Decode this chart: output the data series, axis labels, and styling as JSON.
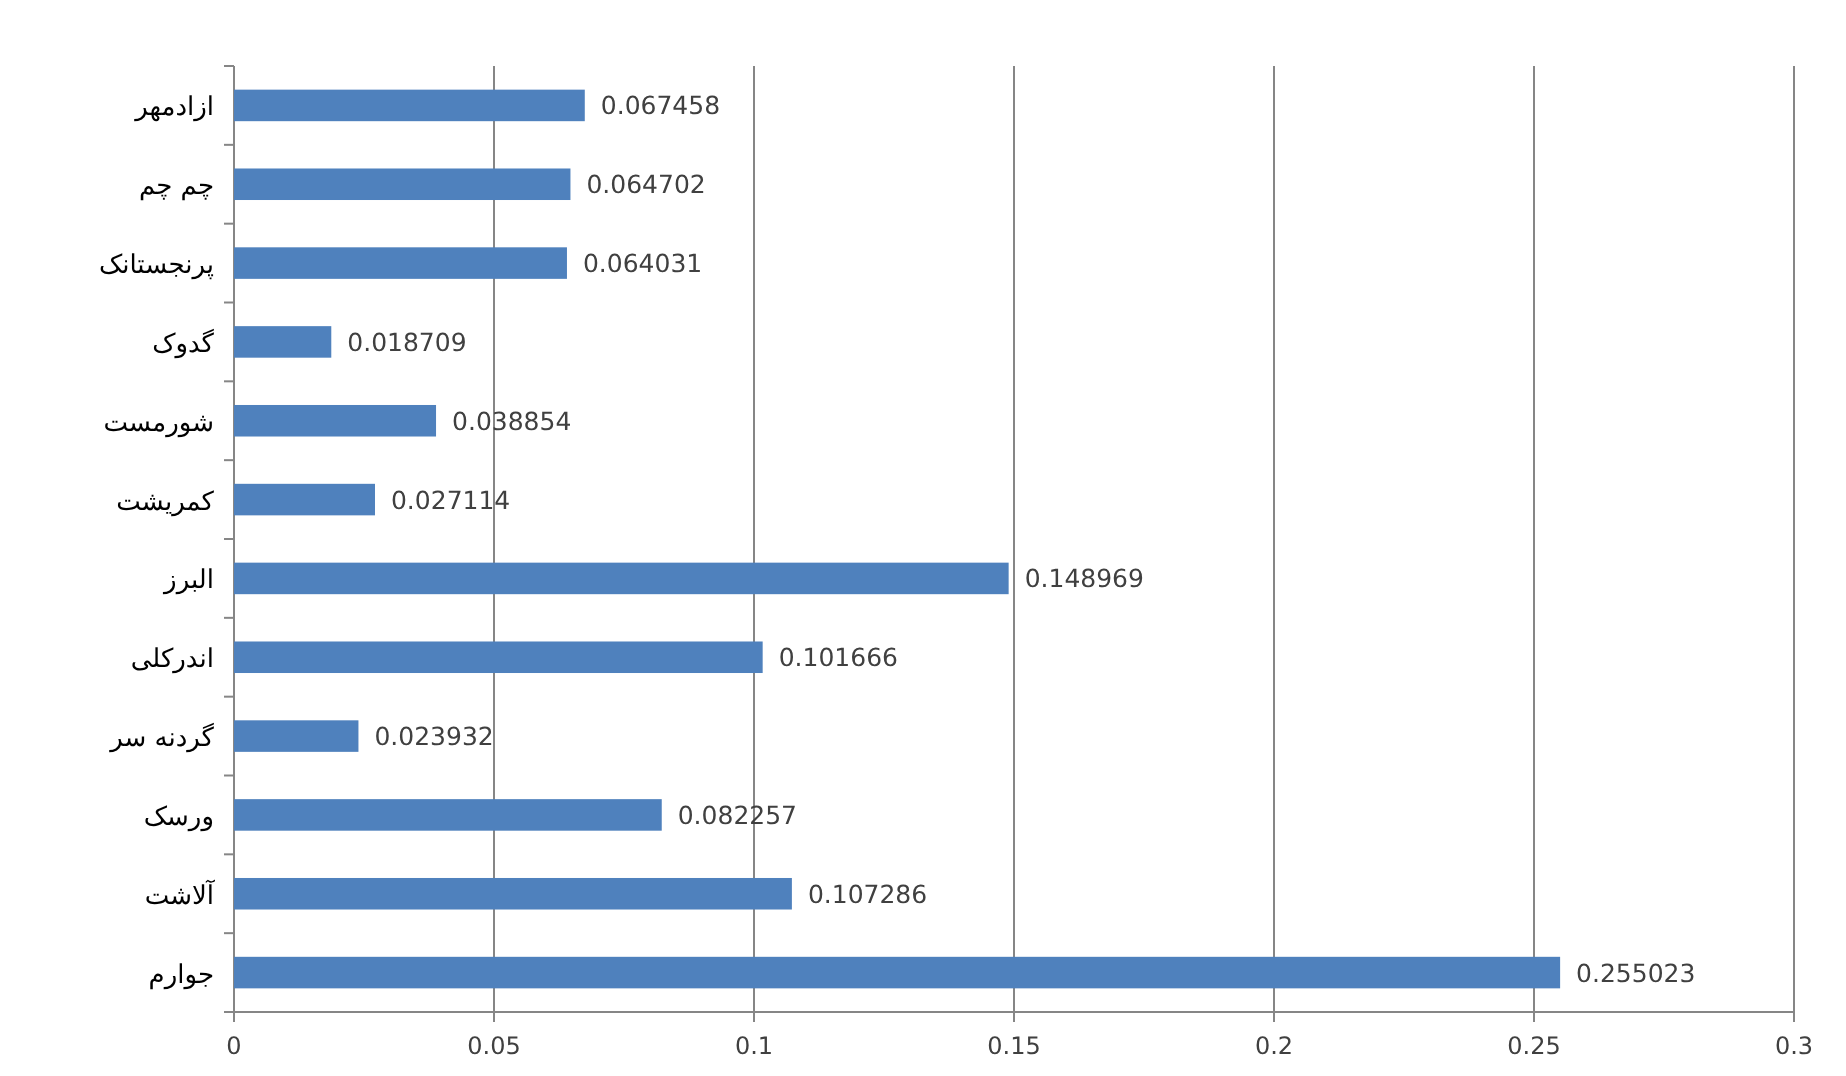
{
  "chart_data": {
    "type": "bar",
    "orientation": "horizontal",
    "categories": [
      "ازادمهر",
      "چم چم",
      "پرنجستانک",
      "گدوک",
      "شورمست",
      "کمریشت",
      "البرز",
      "اندرکلی",
      "گردنه سر",
      "ورسک",
      "آلاشت",
      "جوارم"
    ],
    "values": [
      0.067458,
      0.064702,
      0.064031,
      0.018709,
      0.038854,
      0.027114,
      0.148969,
      0.101666,
      0.023932,
      0.082257,
      0.107286,
      0.255023
    ],
    "color": "#4f81bd",
    "xlim": [
      0,
      0.3
    ],
    "xticks": [
      0,
      0.05,
      0.1,
      0.15,
      0.2,
      0.25,
      0.3
    ],
    "grid": "x",
    "data_labels": true
  }
}
